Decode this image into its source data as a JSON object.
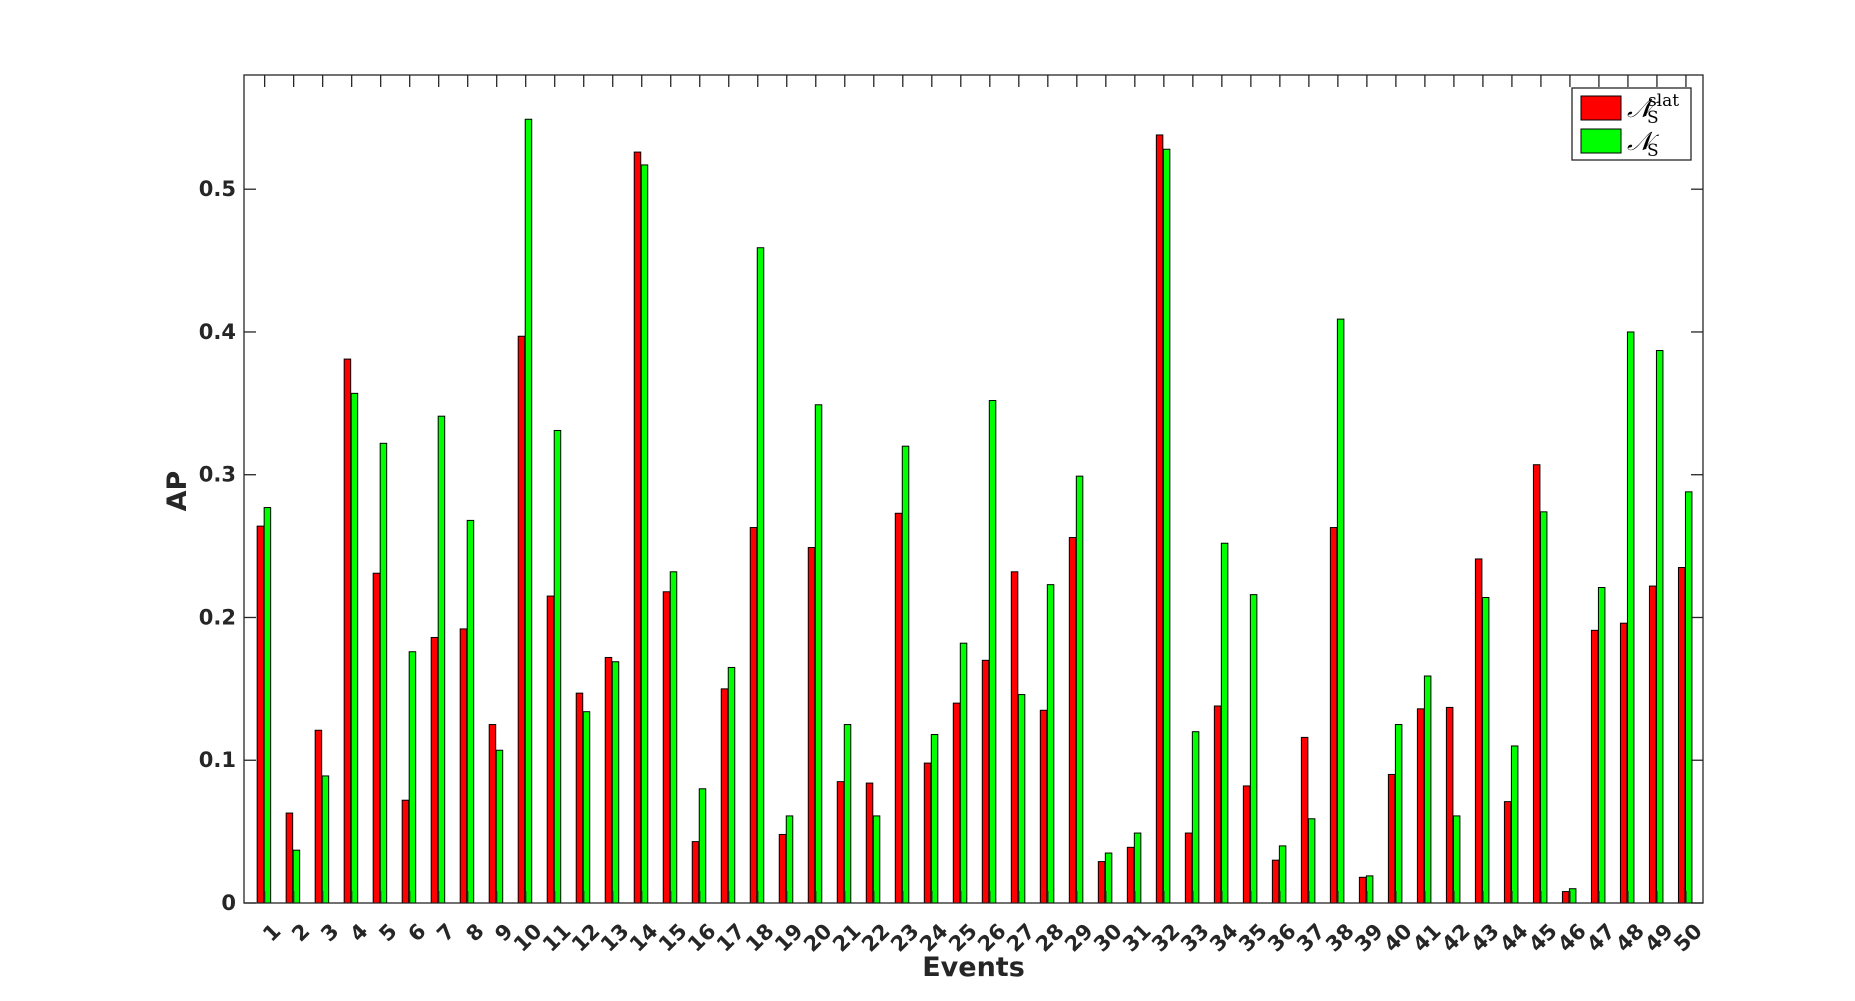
{
  "chart_data": {
    "type": "bar",
    "xlabel": "Events",
    "ylabel": "AP",
    "ylim": [
      0,
      0.58
    ],
    "yticks": [
      0,
      0.1,
      0.2,
      0.3,
      0.4,
      0.5
    ],
    "ytick_labels": [
      "0",
      "0.1",
      "0.2",
      "0.3",
      "0.4",
      "0.5"
    ],
    "grid": false,
    "legend_position": "top-right",
    "categories": [
      "1",
      "2",
      "3",
      "4",
      "5",
      "6",
      "7",
      "8",
      "9",
      "10",
      "11",
      "12",
      "13",
      "14",
      "15",
      "16",
      "17",
      "18",
      "19",
      "20",
      "21",
      "22",
      "23",
      "24",
      "25",
      "26",
      "27",
      "28",
      "29",
      "30",
      "31",
      "32",
      "33",
      "34",
      "35",
      "36",
      "37",
      "38",
      "39",
      "40",
      "41",
      "42",
      "43",
      "44",
      "45",
      "46",
      "47",
      "48",
      "49",
      "50"
    ],
    "series": [
      {
        "name": "𝒩S slat",
        "color": "#ff0000",
        "values": [
          0.264,
          0.063,
          0.121,
          0.381,
          0.231,
          0.072,
          0.186,
          0.192,
          0.125,
          0.397,
          0.215,
          0.147,
          0.172,
          0.526,
          0.218,
          0.043,
          0.15,
          0.263,
          0.048,
          0.249,
          0.085,
          0.084,
          0.273,
          0.098,
          0.14,
          0.17,
          0.232,
          0.135,
          0.256,
          0.029,
          0.039,
          0.538,
          0.049,
          0.138,
          0.082,
          0.03,
          0.116,
          0.263,
          0.018,
          0.09,
          0.136,
          0.137,
          0.241,
          0.071,
          0.307,
          0.008,
          0.191,
          0.196,
          0.222,
          0.235
        ]
      },
      {
        "name": "𝒩S",
        "color": "#00ff00",
        "values": [
          0.277,
          0.037,
          0.089,
          0.357,
          0.322,
          0.176,
          0.341,
          0.268,
          0.107,
          0.549,
          0.331,
          0.134,
          0.169,
          0.517,
          0.232,
          0.08,
          0.165,
          0.459,
          0.061,
          0.349,
          0.125,
          0.061,
          0.32,
          0.118,
          0.182,
          0.352,
          0.146,
          0.223,
          0.299,
          0.035,
          0.049,
          0.528,
          0.12,
          0.252,
          0.216,
          0.04,
          0.059,
          0.409,
          0.019,
          0.125,
          0.159,
          0.061,
          0.214,
          0.11,
          0.274,
          0.01,
          0.221,
          0.4,
          0.387,
          0.288
        ]
      }
    ],
    "legend": {
      "entries": [
        {
          "symbol": "𝒩",
          "sub": "S",
          "sup": "slat",
          "color": "#ff0000"
        },
        {
          "symbol": "𝒩",
          "sub": "S",
          "sup": "",
          "color": "#00ff00"
        }
      ]
    }
  }
}
